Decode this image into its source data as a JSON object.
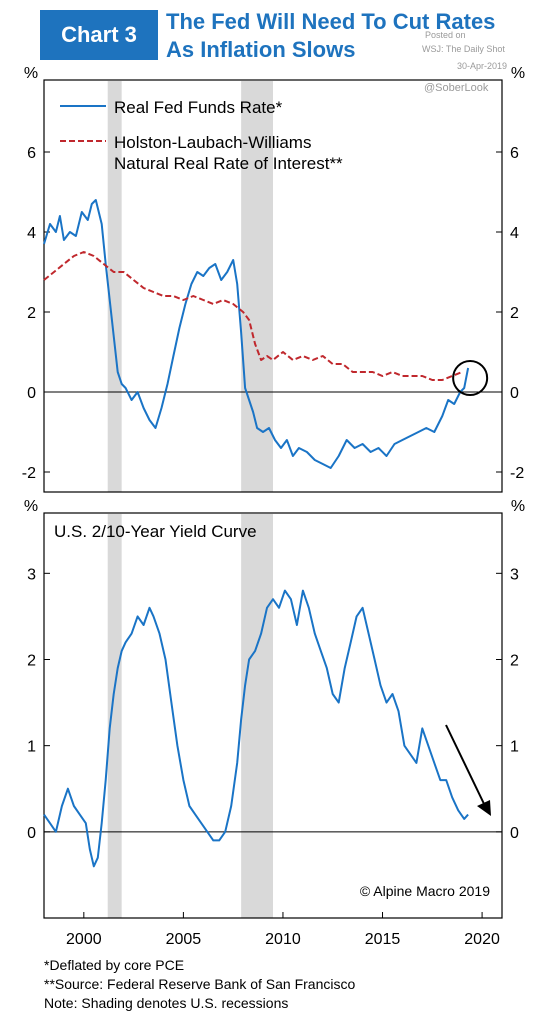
{
  "header": {
    "badge": "Chart 3",
    "title_line1": "The Fed Will Need To Cut Rates",
    "title_line2": "As Inflation Slows",
    "posted_on": "Posted on",
    "source_tag": "WSJ: The Daily Shot",
    "date": "30-Apr-2019",
    "handle": "@SoberLook"
  },
  "colors": {
    "accent": "#1e73be",
    "series_blue": "#1a74c6",
    "series_red": "#c0282d",
    "recession": "#d9d9d9"
  },
  "chart_data": [
    {
      "type": "line",
      "unit_label": "%",
      "ylim": [
        -2.5,
        7.8
      ],
      "yticks": [
        -2,
        0,
        2,
        4,
        6
      ],
      "xlim": [
        1998,
        2021
      ],
      "recessions": [
        [
          2001.2,
          2001.9
        ],
        [
          2007.9,
          2009.5
        ]
      ],
      "series": [
        {
          "name": "Real Fed Funds Rate*",
          "color": "#1a74c6",
          "x": [
            1998.0,
            1998.3,
            1998.6,
            1998.8,
            1999.0,
            1999.3,
            1999.6,
            1999.9,
            2000.2,
            2000.4,
            2000.6,
            2000.9,
            2001.1,
            2001.3,
            2001.5,
            2001.7,
            2001.9,
            2002.1,
            2002.4,
            2002.7,
            2003.0,
            2003.3,
            2003.6,
            2003.9,
            2004.2,
            2004.5,
            2004.8,
            2005.1,
            2005.4,
            2005.7,
            2006.0,
            2006.3,
            2006.6,
            2006.9,
            2007.2,
            2007.5,
            2007.7,
            2007.9,
            2008.1,
            2008.3,
            2008.5,
            2008.7,
            2009.0,
            2009.3,
            2009.6,
            2009.9,
            2010.2,
            2010.5,
            2010.8,
            2011.2,
            2011.6,
            2012.0,
            2012.4,
            2012.8,
            2013.2,
            2013.6,
            2014.0,
            2014.4,
            2014.8,
            2015.2,
            2015.6,
            2016.0,
            2016.4,
            2016.8,
            2017.2,
            2017.6,
            2018.0,
            2018.3,
            2018.6,
            2018.9,
            2019.1,
            2019.3
          ],
          "y": [
            3.7,
            4.2,
            4.0,
            4.4,
            3.8,
            4.0,
            3.9,
            4.5,
            4.3,
            4.7,
            4.8,
            4.2,
            3.2,
            2.3,
            1.4,
            0.5,
            0.2,
            0.1,
            -0.2,
            0.0,
            -0.4,
            -0.7,
            -0.9,
            -0.4,
            0.2,
            0.9,
            1.6,
            2.2,
            2.7,
            3.0,
            2.9,
            3.1,
            3.2,
            2.8,
            3.0,
            3.3,
            2.7,
            1.5,
            0.1,
            -0.2,
            -0.5,
            -0.9,
            -1.0,
            -0.9,
            -1.2,
            -1.4,
            -1.2,
            -1.6,
            -1.4,
            -1.5,
            -1.7,
            -1.8,
            -1.9,
            -1.6,
            -1.2,
            -1.4,
            -1.3,
            -1.5,
            -1.4,
            -1.6,
            -1.3,
            -1.2,
            -1.1,
            -1.0,
            -0.9,
            -1.0,
            -0.6,
            -0.2,
            -0.3,
            0.0,
            0.1,
            0.6
          ]
        },
        {
          "name": "Holston-Laubach-Williams Natural Real Rate of Interest**",
          "color": "#c0282d",
          "x": [
            1998.0,
            1998.5,
            1999.0,
            1999.5,
            2000.0,
            2000.5,
            2001.0,
            2001.5,
            2002.0,
            2002.5,
            2003.0,
            2003.5,
            2004.0,
            2004.5,
            2005.0,
            2005.5,
            2006.0,
            2006.5,
            2007.0,
            2007.5,
            2008.0,
            2008.3,
            2008.6,
            2008.9,
            2009.2,
            2009.5,
            2010.0,
            2010.5,
            2011.0,
            2011.5,
            2012.0,
            2012.5,
            2013.0,
            2013.5,
            2014.0,
            2014.5,
            2015.0,
            2015.5,
            2016.0,
            2016.5,
            2017.0,
            2017.5,
            2018.0,
            2018.5,
            2019.0
          ],
          "y": [
            2.8,
            3.0,
            3.2,
            3.4,
            3.5,
            3.4,
            3.2,
            3.0,
            3.0,
            2.8,
            2.6,
            2.5,
            2.4,
            2.4,
            2.3,
            2.4,
            2.3,
            2.2,
            2.3,
            2.2,
            2.0,
            1.8,
            1.2,
            0.8,
            0.9,
            0.8,
            1.0,
            0.8,
            0.9,
            0.8,
            0.9,
            0.7,
            0.7,
            0.5,
            0.5,
            0.5,
            0.4,
            0.5,
            0.4,
            0.4,
            0.4,
            0.3,
            0.3,
            0.4,
            0.5
          ]
        }
      ]
    },
    {
      "type": "line",
      "unit_label": "%",
      "title": "U.S. 2/10-Year Yield Curve",
      "ylim": [
        -1.0,
        3.7
      ],
      "yticks": [
        0,
        1,
        2,
        3
      ],
      "xlim": [
        1998,
        2021
      ],
      "xticks": [
        2000,
        2005,
        2010,
        2015,
        2020
      ],
      "recessions": [
        [
          2001.2,
          2001.9
        ],
        [
          2007.9,
          2009.5
        ]
      ],
      "annotation": "© Alpine Macro 2019",
      "series": [
        {
          "name": "U.S. 2/10-Year Yield Curve",
          "color": "#1a74c6",
          "x": [
            1998.0,
            1998.3,
            1998.6,
            1998.9,
            1999.2,
            1999.5,
            1999.8,
            2000.1,
            2000.3,
            2000.5,
            2000.7,
            2000.9,
            2001.1,
            2001.3,
            2001.5,
            2001.7,
            2001.9,
            2002.1,
            2002.4,
            2002.7,
            2003.0,
            2003.3,
            2003.5,
            2003.8,
            2004.1,
            2004.4,
            2004.7,
            2005.0,
            2005.3,
            2005.6,
            2005.9,
            2006.2,
            2006.5,
            2006.8,
            2007.1,
            2007.4,
            2007.7,
            2007.9,
            2008.1,
            2008.3,
            2008.6,
            2008.9,
            2009.2,
            2009.5,
            2009.8,
            2010.1,
            2010.4,
            2010.7,
            2011.0,
            2011.3,
            2011.6,
            2011.9,
            2012.2,
            2012.5,
            2012.8,
            2013.1,
            2013.4,
            2013.7,
            2014.0,
            2014.3,
            2014.6,
            2014.9,
            2015.2,
            2015.5,
            2015.8,
            2016.1,
            2016.4,
            2016.7,
            2017.0,
            2017.3,
            2017.6,
            2017.9,
            2018.2,
            2018.5,
            2018.8,
            2019.1,
            2019.3
          ],
          "y": [
            0.2,
            0.1,
            0.0,
            0.3,
            0.5,
            0.3,
            0.2,
            0.1,
            -0.2,
            -0.4,
            -0.3,
            0.1,
            0.6,
            1.2,
            1.6,
            1.9,
            2.1,
            2.2,
            2.3,
            2.5,
            2.4,
            2.6,
            2.5,
            2.3,
            2.0,
            1.5,
            1.0,
            0.6,
            0.3,
            0.2,
            0.1,
            0.0,
            -0.1,
            -0.1,
            0.0,
            0.3,
            0.8,
            1.3,
            1.7,
            2.0,
            2.1,
            2.3,
            2.6,
            2.7,
            2.6,
            2.8,
            2.7,
            2.4,
            2.8,
            2.6,
            2.3,
            2.1,
            1.9,
            1.6,
            1.5,
            1.9,
            2.2,
            2.5,
            2.6,
            2.3,
            2.0,
            1.7,
            1.5,
            1.6,
            1.4,
            1.0,
            0.9,
            0.8,
            1.2,
            1.0,
            0.8,
            0.6,
            0.6,
            0.4,
            0.25,
            0.15,
            0.2
          ]
        }
      ]
    }
  ],
  "footnotes": [
    "*Deflated by core PCE",
    "**Source: Federal Reserve Bank of San Francisco",
    "Note: Shading denotes U.S. recessions"
  ]
}
